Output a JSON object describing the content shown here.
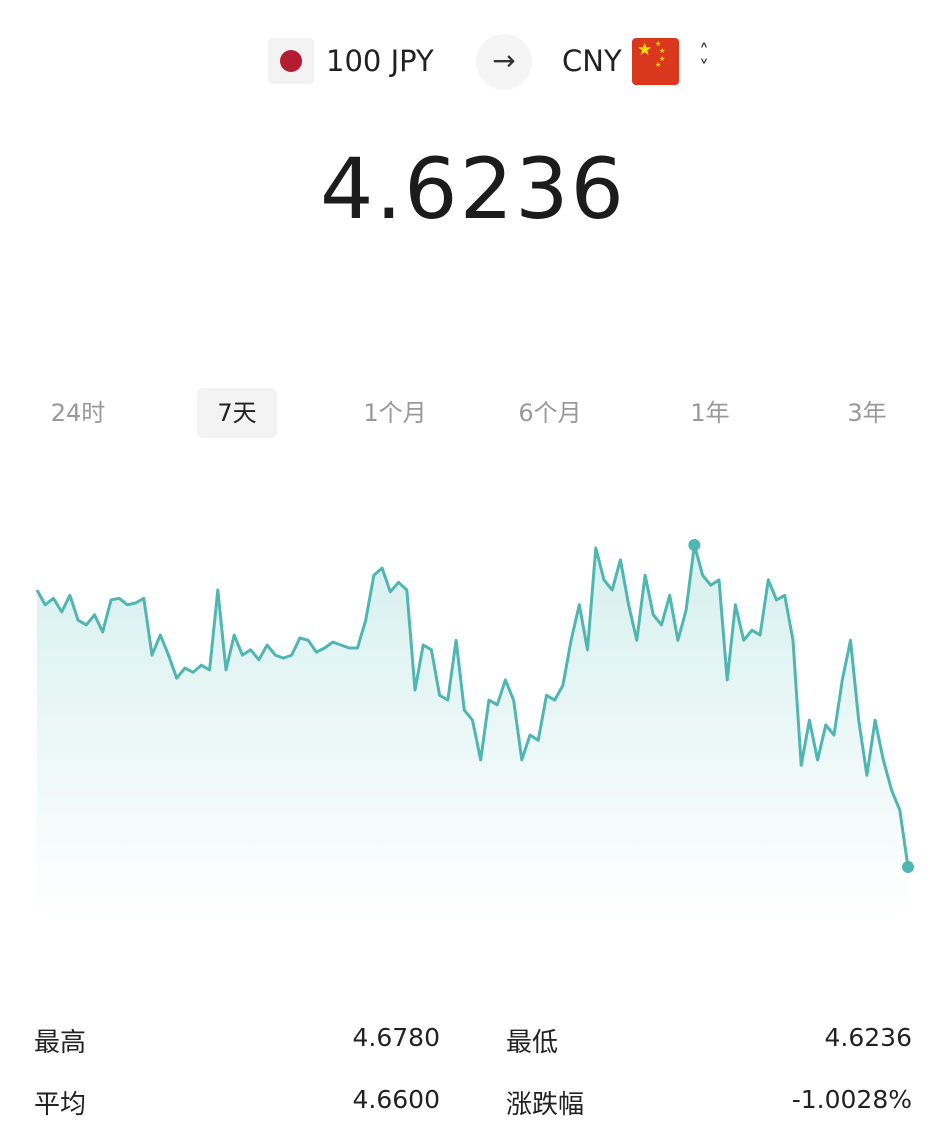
{
  "converter": {
    "from_amount_currency": "100 JPY",
    "from_flag_icon": "japan-flag-icon",
    "swap_icon": "arrow-right-icon",
    "to_currency": "CNY",
    "to_flag_icon": "china-flag-icon",
    "selector_icon": "chevron-up-down-icon"
  },
  "rate": "4.6236",
  "tabs": [
    {
      "label": "24时",
      "active": false
    },
    {
      "label": "7天",
      "active": true
    },
    {
      "label": "1个月",
      "active": false
    },
    {
      "label": "6个月",
      "active": false
    },
    {
      "label": "1年",
      "active": false
    },
    {
      "label": "3年",
      "active": false
    }
  ],
  "colors": {
    "line": "#4fb6b2",
    "fill": "#e6f6f5",
    "jp_red": "#b31c31",
    "cn_red": "#d9381e"
  },
  "chart_data": {
    "type": "area",
    "period": "7天",
    "ylim": [
      4.6236,
      4.678
    ],
    "grid": false,
    "markers": [
      "max",
      "last"
    ],
    "values": [
      4.6704,
      4.6679,
      4.669,
      4.6667,
      4.6695,
      4.6653,
      4.6645,
      4.6662,
      4.6633,
      4.6687,
      4.669,
      4.6679,
      4.6682,
      4.669,
      4.6594,
      4.6628,
      4.6594,
      4.6555,
      4.6572,
      4.6565,
      4.6577,
      4.6569,
      4.6704,
      4.6569,
      4.6628,
      4.6594,
      4.6603,
      4.6586,
      4.6611,
      4.6594,
      4.6589,
      4.6594,
      4.6623,
      4.6619,
      4.6599,
      4.6606,
      4.6616,
      4.6611,
      4.6606,
      4.6606,
      4.6653,
      4.6729,
      4.6741,
      4.6701,
      4.6717,
      4.6704,
      4.6535,
      4.6611,
      4.6603,
      4.6526,
      4.6518,
      4.6619,
      4.6501,
      4.6484,
      4.6417,
      4.6518,
      4.651,
      4.6552,
      4.6518,
      4.6417,
      4.6459,
      4.645,
      4.6526,
      4.6518,
      4.6543,
      4.6619,
      4.6679,
      4.6603,
      4.6775,
      4.6721,
      4.6704,
      4.6755,
      4.6679,
      4.6619,
      4.6729,
      4.6662,
      4.6645,
      4.6695,
      4.6619,
      4.667,
      4.678,
      4.6729,
      4.6712,
      4.6721,
      4.6552,
      4.6679,
      4.6619,
      4.6636,
      4.6628,
      4.6721,
      4.6687,
      4.6695,
      4.6619,
      4.6408,
      4.6484,
      4.6417,
      4.6476,
      4.6459,
      4.6552,
      4.6619,
      4.6484,
      4.6391,
      4.6484,
      4.6417,
      4.6366,
      4.6332,
      4.6236
    ]
  },
  "stats": {
    "high_label": "最高",
    "high_value": "4.6780",
    "low_label": "最低",
    "low_value": "4.6236",
    "avg_label": "平均",
    "avg_value": "4.6600",
    "change_label": "涨跌幅",
    "change_value": "-1.0028%"
  }
}
